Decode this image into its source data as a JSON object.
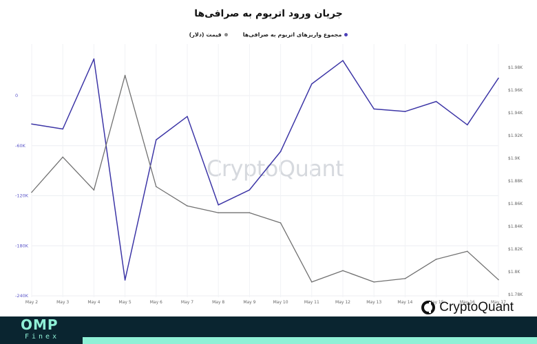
{
  "chart": {
    "title": "جریان ورود اتریوم به صرافی‌ها",
    "watermark": "CryptoQuant",
    "legend": [
      {
        "label": "مجموع واریزهای اتریوم به صرافی‌ها",
        "color": "#4b3fb8"
      },
      {
        "label": "قیمت (دلار)",
        "color": "#888888"
      }
    ]
  },
  "branding": {
    "logo_text": "CryptoQuant",
    "footer_name": "OMP",
    "footer_sub": "Finex"
  },
  "colors": {
    "flow_line": "#3c35a6",
    "price_line": "#707070",
    "accent": "#8ff0d6",
    "footer_bg": "#0a2530"
  },
  "chart_data": {
    "type": "line",
    "categories": [
      "May 2",
      "May 3",
      "May 4",
      "May 5",
      "May 6",
      "May 7",
      "May 8",
      "May 9",
      "May 10",
      "May 11",
      "May 12",
      "May 13",
      "May 14",
      "May 15",
      "May 16",
      "May 17"
    ],
    "series": [
      {
        "name": "مجموع واریزهای اتریوم به صرافی‌ها",
        "axis": "left",
        "values": [
          -34000,
          -40000,
          44000,
          -221000,
          -53000,
          -25000,
          -131000,
          -113000,
          -67000,
          14000,
          42000,
          -16000,
          -19000,
          -7000,
          -35000,
          21000
        ]
      },
      {
        "name": "قیمت (دلار)",
        "axis": "right",
        "values": [
          1870,
          1901,
          1872,
          1973,
          1875,
          1858,
          1852,
          1852,
          1843,
          1791,
          1801,
          1791,
          1794,
          1811,
          1818,
          1793
        ]
      }
    ],
    "left_axis": {
      "ticks": [
        "0",
        "-60K",
        "-120K",
        "-180K",
        "-240K"
      ],
      "tick_values": [
        0,
        -60000,
        -120000,
        -180000,
        -240000
      ],
      "range": [
        -240000,
        0
      ]
    },
    "right_axis": {
      "ticks": [
        "$1.98K",
        "$1.96K",
        "$1.94K",
        "$1.92K",
        "$1.9K",
        "$1.88K",
        "$1.86K",
        "$1.84K",
        "$1.82K",
        "$1.8K",
        "$1.78K"
      ],
      "tick_values": [
        1980,
        1960,
        1940,
        1920,
        1900,
        1880,
        1860,
        1840,
        1820,
        1800,
        1780
      ],
      "range": [
        1780,
        1980
      ]
    },
    "grid": true,
    "legend_position": "top-center"
  }
}
